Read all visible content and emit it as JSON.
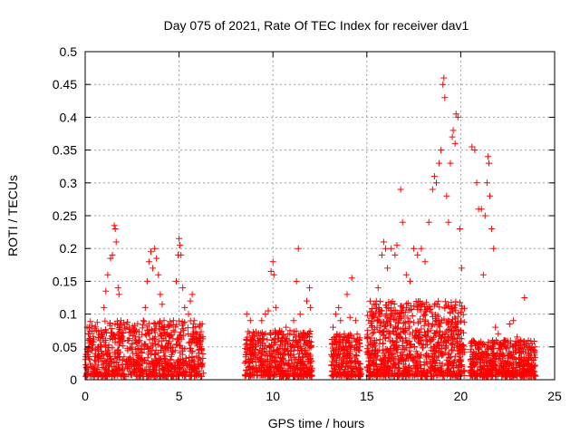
{
  "chart_data": {
    "type": "scatter",
    "title": "Day 075 of 2021, Rate Of TEC Index for receiver dav1",
    "xlabel": "GPS time / hours",
    "ylabel": "ROTI / TECUs",
    "xlim": [
      0,
      25
    ],
    "ylim": [
      0,
      0.5
    ],
    "xticks": [
      0,
      5,
      10,
      15,
      20,
      25
    ],
    "yticks": [
      0,
      0.05,
      0.1,
      0.15,
      0.2,
      0.25,
      0.3,
      0.35,
      0.4,
      0.45,
      0.5
    ],
    "grid": true,
    "marker": "+",
    "color": "#ff0000",
    "series": [
      {
        "name": "dav1 ROTI",
        "points": [
          [
            0.1,
            0.08
          ],
          [
            0.2,
            0.06
          ],
          [
            0.35,
            0.045
          ],
          [
            0.5,
            0.03
          ],
          [
            0.7,
            0.05
          ],
          [
            0.85,
            0.065
          ],
          [
            1.0,
            0.11
          ],
          [
            1.1,
            0.135
          ],
          [
            1.2,
            0.16
          ],
          [
            1.35,
            0.185
          ],
          [
            1.45,
            0.19
          ],
          [
            1.55,
            0.235
          ],
          [
            1.6,
            0.23
          ],
          [
            1.65,
            0.21
          ],
          [
            1.75,
            0.14
          ],
          [
            1.8,
            0.13
          ],
          [
            1.9,
            0.09
          ],
          [
            2.1,
            0.08
          ],
          [
            2.3,
            0.06
          ],
          [
            2.5,
            0.055
          ],
          [
            2.7,
            0.065
          ],
          [
            2.9,
            0.06
          ],
          [
            3.1,
            0.09
          ],
          [
            3.2,
            0.11
          ],
          [
            3.3,
            0.15
          ],
          [
            3.4,
            0.18
          ],
          [
            3.5,
            0.195
          ],
          [
            3.6,
            0.17
          ],
          [
            3.7,
            0.2
          ],
          [
            3.8,
            0.185
          ],
          [
            3.9,
            0.16
          ],
          [
            4.0,
            0.13
          ],
          [
            4.1,
            0.115
          ],
          [
            4.2,
            0.09
          ],
          [
            4.35,
            0.07
          ],
          [
            4.5,
            0.065
          ],
          [
            4.7,
            0.09
          ],
          [
            4.85,
            0.15
          ],
          [
            4.95,
            0.19
          ],
          [
            5.0,
            0.215
          ],
          [
            5.05,
            0.205
          ],
          [
            5.1,
            0.19
          ],
          [
            5.2,
            0.14
          ],
          [
            5.3,
            0.11
          ],
          [
            5.5,
            0.1
          ],
          [
            5.6,
            0.12
          ],
          [
            5.7,
            0.13
          ],
          [
            5.8,
            0.09
          ],
          [
            5.95,
            0.07
          ],
          [
            6.1,
            0.06
          ],
          [
            6.2,
            0.045
          ],
          [
            8.6,
            0.1
          ],
          [
            8.8,
            0.09
          ],
          [
            9.0,
            0.07
          ],
          [
            9.2,
            0.06
          ],
          [
            9.4,
            0.09
          ],
          [
            9.6,
            0.1
          ],
          [
            9.75,
            0.105
          ],
          [
            9.9,
            0.165
          ],
          [
            10.0,
            0.18
          ],
          [
            10.05,
            0.16
          ],
          [
            10.15,
            0.11
          ],
          [
            10.3,
            0.07
          ],
          [
            10.5,
            0.06
          ],
          [
            10.7,
            0.08
          ],
          [
            10.9,
            0.07
          ],
          [
            11.1,
            0.09
          ],
          [
            11.25,
            0.15
          ],
          [
            11.35,
            0.2
          ],
          [
            11.45,
            0.1
          ],
          [
            11.6,
            0.07
          ],
          [
            11.8,
            0.12
          ],
          [
            11.95,
            0.14
          ],
          [
            12.0,
            0.11
          ],
          [
            13.2,
            0.08
          ],
          [
            13.35,
            0.1
          ],
          [
            13.5,
            0.11
          ],
          [
            13.6,
            0.09
          ],
          [
            13.8,
            0.07
          ],
          [
            13.95,
            0.13
          ],
          [
            14.1,
            0.095
          ],
          [
            14.2,
            0.155
          ],
          [
            14.4,
            0.09
          ],
          [
            14.6,
            0.06
          ],
          [
            15.1,
            0.09
          ],
          [
            15.3,
            0.1
          ],
          [
            15.5,
            0.12
          ],
          [
            15.6,
            0.14
          ],
          [
            15.8,
            0.19
          ],
          [
            15.9,
            0.21
          ],
          [
            16.0,
            0.2
          ],
          [
            16.1,
            0.17
          ],
          [
            16.3,
            0.2
          ],
          [
            16.5,
            0.19
          ],
          [
            16.6,
            0.205
          ],
          [
            16.8,
            0.29
          ],
          [
            16.9,
            0.24
          ],
          [
            17.1,
            0.16
          ],
          [
            17.3,
            0.15
          ],
          [
            17.5,
            0.2
          ],
          [
            17.7,
            0.19
          ],
          [
            17.9,
            0.2
          ],
          [
            18.1,
            0.18
          ],
          [
            18.3,
            0.24
          ],
          [
            18.5,
            0.29
          ],
          [
            18.6,
            0.31
          ],
          [
            18.7,
            0.3
          ],
          [
            18.85,
            0.33
          ],
          [
            18.95,
            0.35
          ],
          [
            19.05,
            0.45
          ],
          [
            19.1,
            0.46
          ],
          [
            19.15,
            0.43
          ],
          [
            19.25,
            0.28
          ],
          [
            19.35,
            0.24
          ],
          [
            19.45,
            0.33
          ],
          [
            19.55,
            0.37
          ],
          [
            19.6,
            0.38
          ],
          [
            19.7,
            0.36
          ],
          [
            19.75,
            0.405
          ],
          [
            19.85,
            0.4
          ],
          [
            19.95,
            0.23
          ],
          [
            20.05,
            0.17
          ],
          [
            20.6,
            0.355
          ],
          [
            20.75,
            0.35
          ],
          [
            20.85,
            0.3
          ],
          [
            20.95,
            0.26
          ],
          [
            21.1,
            0.26
          ],
          [
            21.2,
            0.16
          ],
          [
            21.3,
            0.25
          ],
          [
            21.4,
            0.3
          ],
          [
            21.45,
            0.34
          ],
          [
            21.5,
            0.33
          ],
          [
            21.55,
            0.28
          ],
          [
            21.65,
            0.23
          ],
          [
            21.75,
            0.2
          ],
          [
            21.85,
            0.08
          ],
          [
            22.0,
            0.07
          ],
          [
            22.3,
            0.06
          ],
          [
            22.6,
            0.085
          ],
          [
            22.8,
            0.09
          ],
          [
            23.0,
            0.065
          ],
          [
            23.2,
            0.06
          ],
          [
            23.4,
            0.125
          ],
          [
            23.6,
            0.06
          ],
          [
            23.8,
            0.055
          ],
          [
            23.95,
            0.05
          ]
        ]
      }
    ],
    "dense_bands": [
      {
        "x_start": 0.0,
        "x_end": 6.3,
        "y_min": 0.005,
        "y_max": 0.09,
        "count": 850
      },
      {
        "x_start": 8.5,
        "x_end": 12.1,
        "y_min": 0.005,
        "y_max": 0.075,
        "count": 500
      },
      {
        "x_start": 13.1,
        "x_end": 14.7,
        "y_min": 0.005,
        "y_max": 0.07,
        "count": 230
      },
      {
        "x_start": 15.0,
        "x_end": 20.2,
        "y_min": 0.005,
        "y_max": 0.12,
        "count": 900
      },
      {
        "x_start": 20.5,
        "x_end": 24.0,
        "y_min": 0.005,
        "y_max": 0.06,
        "count": 520
      }
    ]
  }
}
